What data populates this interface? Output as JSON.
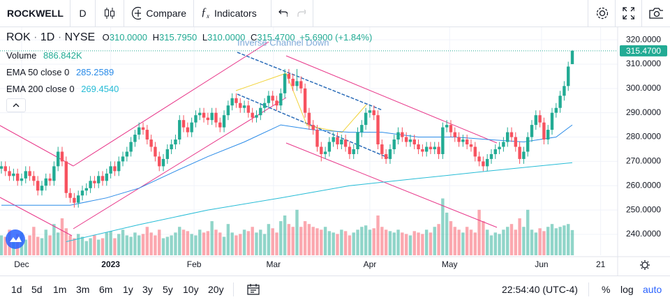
{
  "toolbar": {
    "symbol": "ROCKWELL",
    "interval": "D",
    "compare": "Compare",
    "indicators": "Indicators"
  },
  "legend": {
    "symbol": "ROK",
    "interval": "1D",
    "exchange": "NYSE",
    "o_key": "O",
    "open": "310.0000",
    "h_key": "H",
    "high": "315.7950",
    "l_key": "L",
    "low": "310.0000",
    "c_key": "C",
    "close": "315.4700",
    "change": "+5.6900 (+1.84%)",
    "volume_label": "Volume",
    "volume": "886.842K",
    "ema50_label": "EMA 50 close 0",
    "ema50": "285.2589",
    "ema200_label": "EMA 200 close 0",
    "ema200": "269.4540"
  },
  "ranges": [
    "1d",
    "5d",
    "1m",
    "3m",
    "6m",
    "1y",
    "3y",
    "5y",
    "10y",
    "20y"
  ],
  "clock": "22:54:40 (UTC-4)",
  "scale_buttons": [
    "%",
    "log",
    "auto"
  ],
  "chart_data": {
    "type": "candlestick",
    "annotations": [
      "Inverse Channel Down"
    ],
    "up_color": "#22ab94",
    "down_color": "#f7525f",
    "xlim": [
      -0.34,
      152.2
    ],
    "xticks": [
      {
        "value": 5,
        "label": "Dec"
      },
      {
        "value": 27,
        "label": "2023"
      },
      {
        "value": 47.6,
        "label": "Feb"
      },
      {
        "value": 67.2,
        "label": "Mar"
      },
      {
        "value": 91,
        "label": "Apr"
      },
      {
        "value": 110.7,
        "label": "May"
      },
      {
        "value": 133.4,
        "label": "Jun"
      },
      {
        "value": 148,
        "label": "21"
      }
    ],
    "ylim": [
      231.4,
      324.9
    ],
    "yticks": [
      {
        "value": 240,
        "label": "240.0000"
      },
      {
        "value": 250,
        "label": "250.0000"
      },
      {
        "value": 260,
        "label": "260.0000"
      },
      {
        "value": 270,
        "label": "270.0000"
      },
      {
        "value": 280,
        "label": "280.0000"
      },
      {
        "value": 290,
        "label": "290.0000"
      },
      {
        "value": 300,
        "label": "300.0000"
      },
      {
        "value": 310,
        "label": "310.0000"
      },
      {
        "value": 320,
        "label": "320.0000"
      }
    ],
    "last_price": {
      "value": 315.47,
      "label": "315.4700"
    },
    "grid": true,
    "candles": [
      [
        267,
        270,
        265,
        268
      ],
      [
        268,
        270,
        264,
        266
      ],
      [
        266,
        268,
        262,
        264
      ],
      [
        264,
        267,
        262,
        265
      ],
      [
        265,
        267,
        260,
        262
      ],
      [
        262,
        265,
        260,
        263
      ],
      [
        263,
        268,
        261,
        266
      ],
      [
        266,
        268,
        262,
        264
      ],
      [
        264,
        266,
        260,
        262
      ],
      [
        262,
        264,
        256,
        258
      ],
      [
        258,
        262,
        256,
        260
      ],
      [
        260,
        265,
        258,
        263
      ],
      [
        263,
        265,
        260,
        262
      ],
      [
        262,
        270,
        260,
        268
      ],
      [
        268,
        276,
        266,
        274
      ],
      [
        274,
        276,
        268,
        270
      ],
      [
        270,
        272,
        255,
        257
      ],
      [
        257,
        259,
        253,
        255
      ],
      [
        255,
        257,
        251,
        253
      ],
      [
        253,
        258,
        251,
        256
      ],
      [
        256,
        260,
        254,
        258
      ],
      [
        258,
        261,
        256,
        259
      ],
      [
        259,
        264,
        257,
        262
      ],
      [
        262,
        264,
        259,
        261
      ],
      [
        261,
        266,
        259,
        264
      ],
      [
        264,
        266,
        260,
        262
      ],
      [
        262,
        267,
        260,
        265
      ],
      [
        265,
        270,
        263,
        268
      ],
      [
        268,
        270,
        264,
        266
      ],
      [
        266,
        272,
        264,
        270
      ],
      [
        270,
        274,
        268,
        272
      ],
      [
        272,
        276,
        270,
        274
      ],
      [
        274,
        280,
        272,
        278
      ],
      [
        278,
        283,
        276,
        281
      ],
      [
        281,
        286,
        279,
        284
      ],
      [
        284,
        286,
        281,
        283
      ],
      [
        283,
        285,
        277,
        279
      ],
      [
        279,
        281,
        274,
        276
      ],
      [
        276,
        278,
        270,
        272
      ],
      [
        272,
        274,
        266,
        268
      ],
      [
        268,
        273,
        266,
        271
      ],
      [
        271,
        277,
        269,
        275
      ],
      [
        275,
        279,
        273,
        277
      ],
      [
        277,
        281,
        275,
        279
      ],
      [
        279,
        289,
        277,
        287
      ],
      [
        287,
        289,
        282,
        284
      ],
      [
        284,
        286,
        280,
        282
      ],
      [
        282,
        288,
        280,
        286
      ],
      [
        286,
        291,
        284,
        289
      ],
      [
        289,
        292,
        287,
        290
      ],
      [
        290,
        292,
        286,
        288
      ],
      [
        288,
        290,
        285,
        287
      ],
      [
        287,
        292,
        285,
        290
      ],
      [
        290,
        292,
        284,
        286
      ],
      [
        286,
        288,
        282,
        284
      ],
      [
        284,
        291,
        282,
        289
      ],
      [
        289,
        295,
        287,
        293
      ],
      [
        293,
        298,
        291,
        296
      ],
      [
        296,
        298,
        292,
        294
      ],
      [
        294,
        296,
        290,
        292
      ],
      [
        292,
        295,
        290,
        293
      ],
      [
        293,
        295,
        288,
        290
      ],
      [
        290,
        292,
        286,
        288
      ],
      [
        288,
        291,
        286,
        289
      ],
      [
        289,
        294,
        287,
        292
      ],
      [
        292,
        296,
        290,
        294
      ],
      [
        294,
        299,
        292,
        297
      ],
      [
        297,
        299,
        293,
        295
      ],
      [
        295,
        297,
        291,
        293
      ],
      [
        293,
        300,
        291,
        298
      ],
      [
        298,
        308,
        296,
        306
      ],
      [
        306,
        308,
        302,
        304
      ],
      [
        304,
        306,
        299,
        301
      ],
      [
        301,
        308,
        299,
        303
      ],
      [
        303,
        305,
        298,
        300
      ],
      [
        300,
        302,
        288,
        290
      ],
      [
        290,
        292,
        283,
        285
      ],
      [
        285,
        287,
        281,
        283
      ],
      [
        283,
        285,
        274,
        276
      ],
      [
        276,
        278,
        270,
        273
      ],
      [
        273,
        276,
        271,
        274
      ],
      [
        274,
        280,
        272,
        278
      ],
      [
        278,
        282,
        276,
        280
      ],
      [
        280,
        282,
        275,
        277
      ],
      [
        277,
        281,
        275,
        279
      ],
      [
        279,
        281,
        274,
        276
      ],
      [
        276,
        278,
        271,
        273
      ],
      [
        273,
        277,
        271,
        275
      ],
      [
        275,
        284,
        273,
        282
      ],
      [
        282,
        287,
        280,
        285
      ],
      [
        285,
        292,
        283,
        290
      ],
      [
        290,
        293,
        288,
        291
      ],
      [
        291,
        293,
        287,
        289
      ],
      [
        289,
        291,
        275,
        277
      ],
      [
        277,
        279,
        271,
        273
      ],
      [
        273,
        275,
        269,
        271
      ],
      [
        271,
        277,
        269,
        275
      ],
      [
        275,
        281,
        273,
        279
      ],
      [
        279,
        284,
        277,
        282
      ],
      [
        282,
        284,
        278,
        280
      ],
      [
        280,
        282,
        276,
        278
      ],
      [
        278,
        281,
        276,
        279
      ],
      [
        279,
        281,
        275,
        277
      ],
      [
        277,
        279,
        273,
        275
      ],
      [
        275,
        277,
        272,
        274
      ],
      [
        274,
        278,
        272,
        276
      ],
      [
        276,
        278,
        273,
        275
      ],
      [
        275,
        278,
        273,
        276
      ],
      [
        276,
        278,
        271,
        273
      ],
      [
        273,
        286,
        271,
        284
      ],
      [
        284,
        287,
        282,
        285
      ],
      [
        285,
        287,
        280,
        282
      ],
      [
        282,
        284,
        278,
        280
      ],
      [
        280,
        282,
        276,
        278
      ],
      [
        278,
        281,
        276,
        279
      ],
      [
        279,
        281,
        275,
        277
      ],
      [
        277,
        279,
        274,
        276
      ],
      [
        276,
        278,
        270,
        272
      ],
      [
        272,
        274,
        268,
        270
      ],
      [
        270,
        272,
        266,
        268
      ],
      [
        268,
        273,
        266,
        271
      ],
      [
        271,
        275,
        269,
        273
      ],
      [
        273,
        277,
        271,
        275
      ],
      [
        275,
        278,
        273,
        276
      ],
      [
        276,
        280,
        274,
        278
      ],
      [
        278,
        284,
        276,
        282
      ],
      [
        282,
        284,
        278,
        280
      ],
      [
        280,
        282,
        274,
        276
      ],
      [
        276,
        278,
        269,
        271
      ],
      [
        271,
        276,
        269,
        274
      ],
      [
        274,
        282,
        272,
        280
      ],
      [
        280,
        287,
        278,
        285
      ],
      [
        285,
        291,
        283,
        289
      ],
      [
        289,
        291,
        284,
        286
      ],
      [
        286,
        288,
        277,
        279
      ],
      [
        279,
        285,
        277,
        283
      ],
      [
        283,
        292,
        281,
        290
      ],
      [
        290,
        294,
        288,
        292
      ],
      [
        292,
        299,
        290,
        297
      ],
      [
        297,
        303,
        295,
        301
      ],
      [
        301,
        311,
        299,
        309
      ],
      [
        310,
        315.795,
        310,
        315.47
      ]
    ],
    "vlim": [
      0,
      8000
    ],
    "volume": [
      700,
      650,
      900,
      600,
      750,
      800,
      550,
      700,
      1000,
      650,
      600,
      900,
      700,
      1100,
      800,
      1300,
      950,
      700,
      600,
      750,
      650,
      500,
      600,
      700,
      550,
      600,
      800,
      850,
      600,
      750,
      900,
      700,
      650,
      800,
      700,
      750,
      1000,
      800,
      700,
      900,
      600,
      650,
      700,
      800,
      1000,
      900,
      850,
      750,
      700,
      900,
      800,
      850,
      1200,
      900,
      800,
      650,
      1100,
      800,
      700,
      750,
      900,
      850,
      1000,
      800,
      900,
      750,
      1100,
      950,
      800,
      1200,
      1400,
      1100,
      1000,
      1600,
      1000,
      1200,
      1100,
      1000,
      950,
      900,
      1000,
      850,
      800,
      750,
      900,
      850,
      700,
      800,
      900,
      1000,
      1050,
      900,
      950,
      1400,
      1000,
      900,
      850,
      800,
      900,
      800,
      750,
      700,
      850,
      800,
      750,
      900,
      800,
      1000,
      1100,
      2000,
      1500,
      1200,
      1000,
      900,
      800,
      1000,
      900,
      800,
      1600,
      1200,
      900,
      700,
      800,
      750,
      900,
      1000,
      1100,
      900,
      1300,
      1000,
      1600,
      900,
      800,
      950,
      850,
      1000,
      1100,
      950,
      1000,
      1050,
      1100,
      886.842
    ],
    "series": [
      {
        "name": "EMA 50",
        "color": "#2a8be8",
        "x": [
          0,
          17,
          26,
          34,
          43,
          51,
          60,
          69,
          77,
          86,
          94,
          103,
          112,
          120,
          129,
          137,
          141
        ],
        "values": [
          252,
          252,
          255,
          259,
          266,
          272,
          278,
          285,
          283,
          282,
          282,
          280,
          280,
          279,
          278,
          280,
          285
        ]
      },
      {
        "name": "EMA 200",
        "color": "#26bcd6",
        "x": [
          16,
          34,
          51,
          69,
          86,
          103,
          120,
          141
        ],
        "values": [
          237,
          244,
          250,
          255,
          260,
          263,
          266,
          269.5
        ]
      }
    ]
  }
}
